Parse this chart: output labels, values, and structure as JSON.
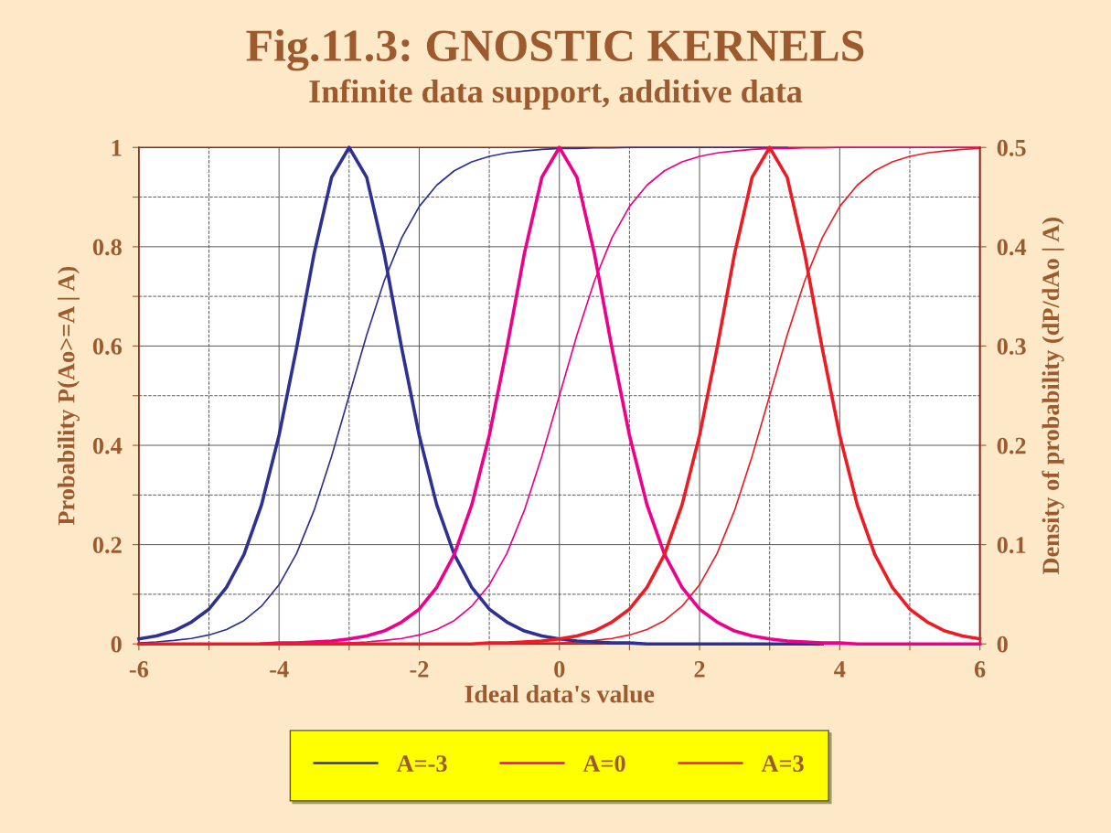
{
  "chart_data": {
    "type": "line",
    "title": "Fig.11.3: GNOSTIC KERNELS",
    "subtitle": "Infinite data support, additive data",
    "xlabel": "Ideal data's value",
    "ylabel": "Probability P(Ao>=A | A)",
    "y2label": "Density of probability (dP/dAo | A)",
    "x": [
      -6,
      -5.75,
      -5.5,
      -5.25,
      -5,
      -4.75,
      -4.5,
      -4.25,
      -4,
      -3.75,
      -3.5,
      -3.25,
      -3,
      -2.75,
      -2.5,
      -2.25,
      -2,
      -1.75,
      -1.5,
      -1.25,
      -1,
      -0.75,
      -0.5,
      -0.25,
      0,
      0.25,
      0.5,
      0.75,
      1,
      1.25,
      1.5,
      1.75,
      2,
      2.25,
      2.5,
      2.75,
      3,
      3.25,
      3.5,
      3.75,
      4,
      4.25,
      4.5,
      4.75,
      5,
      5.25,
      5.5,
      5.75,
      6
    ],
    "series": [
      {
        "color": "#2e3192",
        "values": [
          0.002,
          0.004,
          0.007,
          0.011,
          0.018,
          0.029,
          0.047,
          0.076,
          0.119,
          0.182,
          0.269,
          0.378,
          0.5,
          0.622,
          0.731,
          0.818,
          0.881,
          0.924,
          0.953,
          0.971,
          0.982,
          0.989,
          0.993,
          0.996,
          0.998,
          0.998,
          0.999,
          0.999,
          1,
          1,
          1,
          1,
          1,
          1,
          1,
          1,
          1,
          1,
          null,
          null,
          null,
          null,
          null,
          null,
          null,
          null,
          null,
          null,
          null
        ]
      },
      {
        "name": "A=-3",
        "color": "#2e3192",
        "axis": "y2",
        "values": [
          0.005,
          0.008,
          0.013,
          0.022,
          0.035,
          0.057,
          0.09,
          0.14,
          0.21,
          0.298,
          0.393,
          0.47,
          0.5,
          0.47,
          0.393,
          0.298,
          0.21,
          0.14,
          0.09,
          0.057,
          0.035,
          0.022,
          0.013,
          0.008,
          0.005,
          0.003,
          0.002,
          0.001,
          0.001,
          0,
          0,
          0,
          0,
          0,
          0,
          0,
          0,
          0,
          0,
          0,
          null,
          null,
          null,
          null,
          null,
          null,
          null,
          null,
          null
        ]
      },
      {
        "color": "#ec008c",
        "values": [
          null,
          null,
          null,
          null,
          null,
          null,
          null,
          null,
          0,
          0.001,
          0.001,
          0.002,
          0.002,
          0.004,
          0.007,
          0.011,
          0.018,
          0.029,
          0.047,
          0.076,
          0.119,
          0.182,
          0.269,
          0.378,
          0.5,
          0.622,
          0.731,
          0.818,
          0.881,
          0.924,
          0.953,
          0.971,
          0.982,
          0.989,
          0.993,
          0.996,
          0.998,
          0.998,
          0.999,
          0.999,
          1,
          1,
          1,
          1,
          1,
          1,
          1,
          1,
          1
        ]
      },
      {
        "name": "A=0",
        "color": "#ec008c",
        "axis": "y2",
        "values": [
          null,
          null,
          null,
          null,
          null,
          null,
          null,
          0,
          0.001,
          0.001,
          0.002,
          0.003,
          0.005,
          0.008,
          0.013,
          0.022,
          0.035,
          0.057,
          0.09,
          0.14,
          0.21,
          0.298,
          0.393,
          0.47,
          0.5,
          0.47,
          0.393,
          0.298,
          0.21,
          0.14,
          0.09,
          0.057,
          0.035,
          0.022,
          0.013,
          0.008,
          0.005,
          0.003,
          0.002,
          0.001,
          0.001,
          0,
          0,
          0,
          0,
          0,
          0,
          0,
          0
        ]
      },
      {
        "color": "#ed1c24",
        "values": [
          0,
          0,
          0,
          0,
          0,
          0,
          0,
          0,
          0,
          0,
          0,
          0,
          0,
          0,
          0,
          0,
          0,
          0,
          0,
          0,
          0,
          0.001,
          0.001,
          0.002,
          0.002,
          0.004,
          0.007,
          0.011,
          0.018,
          0.029,
          0.047,
          0.076,
          0.119,
          0.182,
          0.269,
          0.378,
          0.5,
          0.622,
          0.731,
          0.818,
          0.881,
          0.924,
          0.953,
          0.971,
          0.982,
          0.989,
          0.993,
          0.996,
          0.998
        ]
      },
      {
        "name": "A=3",
        "color": "#ed1c24",
        "axis": "y2",
        "values": [
          0,
          0,
          0,
          0,
          0,
          0,
          0,
          0,
          0,
          0,
          0,
          0,
          0,
          0,
          0,
          0,
          0,
          0,
          0,
          0,
          0.001,
          0.001,
          0.002,
          0.003,
          0.005,
          0.008,
          0.013,
          0.022,
          0.035,
          0.057,
          0.09,
          0.14,
          0.21,
          0.298,
          0.393,
          0.47,
          0.5,
          0.47,
          0.393,
          0.298,
          0.21,
          0.14,
          0.09,
          0.057,
          0.035,
          0.022,
          0.013,
          0.008,
          0.005
        ]
      }
    ],
    "xlim": [
      -6,
      6
    ],
    "ylim": [
      0,
      1
    ],
    "y2lim": [
      0,
      0.5
    ],
    "xticks": [
      -6,
      {
        "value": -5,
        "label": null
      },
      -4,
      {
        "value": -3,
        "label": null
      },
      -2,
      {
        "value": -1,
        "label": null
      },
      0,
      {
        "value": 1,
        "label": null
      },
      2,
      {
        "value": 3,
        "label": null
      },
      4,
      {
        "value": 5,
        "label": null
      },
      6
    ],
    "yticks": [
      0,
      {
        "value": 0.1,
        "label": null
      },
      0.2,
      {
        "value": 0.3,
        "label": null
      },
      0.4,
      {
        "value": 0.5,
        "label": null
      },
      0.6,
      {
        "value": 0.7,
        "label": null
      },
      0.8,
      {
        "value": 0.9,
        "label": null
      },
      1
    ],
    "y2ticks": [
      0,
      0.1,
      0.2,
      0.3,
      0.4,
      0.5
    ],
    "grid": true,
    "legend": "bottom",
    "marker": "none",
    "line_style": "solid"
  }
}
